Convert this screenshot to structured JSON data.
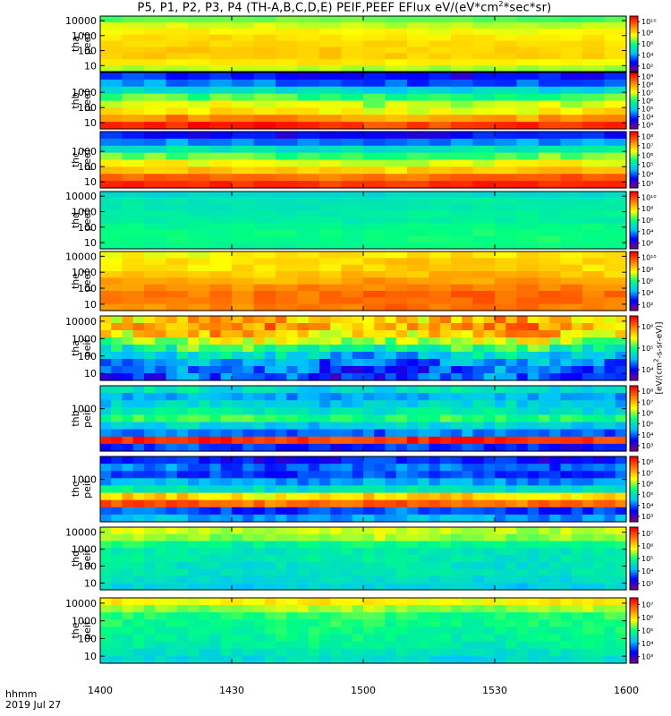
{
  "chart_data": {
    "type": "heatmap",
    "title": "P5, P1, P2, P3, P4 (TH-A,B,C,D,E) PEIF,PEEF EFlux eV/(eV*cm",
    "title_exp": "2",
    "title_tail": "*sec*sr)",
    "time_label": "hhmm",
    "date_label": "2019 Jul 27",
    "x_ticks": [
      "1400",
      "1430",
      "1500",
      "1530",
      "1600"
    ],
    "x_range": [
      "1400",
      "1600"
    ],
    "colorbar_unit": "[eV/(cm",
    "colorbar_unit_exp": "2",
    "colorbar_unit_tail": "-s-sr-eV)]",
    "colormap": [
      "#800080",
      "#0000ff",
      "#00c0ff",
      "#00ff80",
      "#ffff00",
      "#ff8000",
      "#ff0000"
    ],
    "panels": [
      {
        "name": "tha peef",
        "label1": "tha",
        "label2": "peef",
        "yticks": [
          "10",
          "100",
          "1000",
          "10000"
        ],
        "cbticks": [
          "10²",
          "10⁴",
          "10⁶",
          "10⁸",
          "10¹⁰"
        ],
        "profile": [
          4.3,
          4.8,
          5.1,
          5.1,
          5.0,
          4.9,
          4.7,
          4.4,
          3.9
        ],
        "noise": 0.15
      },
      {
        "name": "thb peef",
        "label1": "thb",
        "label2": "peef",
        "yticks": [
          "10",
          "100",
          "1000"
        ],
        "cbticks": [
          "10³",
          "10⁴",
          "10⁵",
          "10⁶",
          "10⁷",
          "10⁸",
          "10⁹"
        ],
        "profile": [
          6.6,
          5.6,
          4.8,
          4.4,
          3.7,
          2.8,
          1.8,
          1.2
        ],
        "noise": 0.35
      },
      {
        "name": "thc peef",
        "label1": "thc",
        "label2": "peef",
        "yticks": [
          "10",
          "100",
          "1000"
        ],
        "cbticks": [
          "10³",
          "10⁴",
          "10⁵",
          "10⁶",
          "10⁷",
          "10⁸"
        ],
        "profile": [
          6.6,
          6.0,
          5.2,
          4.6,
          3.9,
          3.0,
          2.0,
          1.2
        ],
        "noise": 0.3
      },
      {
        "name": "thd peef",
        "label1": "thd",
        "label2": "peef",
        "yticks": [
          "10",
          "100",
          "1000",
          "10000"
        ],
        "cbticks": [
          "10²",
          "10⁴",
          "10⁶",
          "10⁸",
          "10¹⁰"
        ],
        "profile": [
          3.4,
          3.5,
          3.5,
          3.4,
          3.2,
          3.2,
          3.1,
          3.1,
          2.8
        ],
        "noise": 0.12
      },
      {
        "name": "the peef",
        "label1": "the",
        "label2": "peef",
        "yticks": [
          "10",
          "100",
          "1000",
          "10000"
        ],
        "cbticks": [
          "10²",
          "10⁴",
          "10⁶",
          "10⁸",
          "10¹⁰"
        ],
        "profile": [
          5.9,
          6.0,
          6.0,
          5.8,
          5.5,
          5.2,
          5.0,
          5.0,
          4.8
        ],
        "noise": 0.25
      },
      {
        "name": "tha peif",
        "label1": "tha",
        "label2": "peif",
        "yticks": [
          "10",
          "100",
          "1000",
          "10000"
        ],
        "cbticks": [
          "10⁴",
          "10⁵",
          "10⁶"
        ],
        "profile": [
          1.5,
          1.7,
          2.0,
          2.6,
          3.4,
          4.3,
          5.1,
          5.5,
          5.2
        ],
        "noise": 0.7
      },
      {
        "name": "thb peif",
        "label1": "thb",
        "label2": "peif",
        "yticks": [
          "1000"
        ],
        "cbticks": [
          "10³",
          "10⁴",
          "10⁵",
          "10⁶",
          "10⁷",
          "10⁸"
        ],
        "profile": [
          1.4,
          6.6,
          1.8,
          2.6,
          3.6,
          3.0,
          2.6,
          2.2,
          2.8
        ],
        "noise": 0.4
      },
      {
        "name": "thc peif",
        "label1": "thc",
        "label2": "peif",
        "yticks": [
          "1000"
        ],
        "cbticks": [
          "10³",
          "10⁴",
          "10⁵",
          "10⁶",
          "10⁷",
          "10⁸"
        ],
        "profile": [
          2.2,
          1.6,
          6.1,
          5.0,
          3.0,
          2.2,
          1.5,
          1.8,
          1.3
        ],
        "noise": 0.4
      },
      {
        "name": "thd peif",
        "label1": "thd",
        "label2": "peif",
        "yticks": [
          "10",
          "100",
          "1000",
          "10000"
        ],
        "cbticks": [
          "10³",
          "10⁴",
          "10⁵",
          "10⁶",
          "10⁷"
        ],
        "profile": [
          2.6,
          2.8,
          3.0,
          3.0,
          3.1,
          3.1,
          3.4,
          4.2,
          4.4
        ],
        "noise": 0.25
      },
      {
        "name": "the peif",
        "label1": "the",
        "label2": "peif",
        "yticks": [
          "10",
          "100",
          "1000",
          "10000"
        ],
        "cbticks": [
          "10³",
          "10⁴",
          "10⁵",
          "10⁶",
          "10⁷"
        ],
        "profile": [
          2.8,
          3.0,
          3.2,
          3.3,
          3.4,
          3.5,
          3.6,
          4.2,
          4.8
        ],
        "noise": 0.25
      }
    ]
  }
}
